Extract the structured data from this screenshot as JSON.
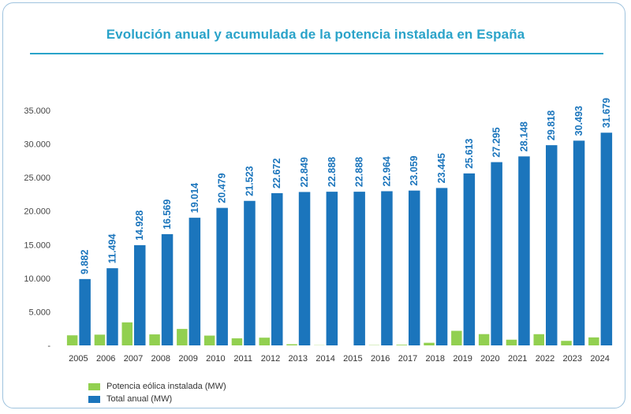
{
  "chart_data": {
    "type": "bar",
    "title": "Evolución anual y acumulada de la potencia instalada en España",
    "xlabel": "",
    "ylabel": "",
    "ylim": [
      0,
      35000
    ],
    "yticks": [
      0,
      5000,
      10000,
      15000,
      20000,
      25000,
      30000,
      35000
    ],
    "ytick_labels": [
      "-",
      "5.000",
      "10.000",
      "15.000",
      "20.000",
      "25.000",
      "30.000",
      "35.000"
    ],
    "categories": [
      "2005",
      "2006",
      "2007",
      "2008",
      "2009",
      "2010",
      "2011",
      "2012",
      "2013",
      "2014",
      "2015",
      "2016",
      "2017",
      "2018",
      "2019",
      "2020",
      "2021",
      "2022",
      "2023",
      "2024"
    ],
    "series": [
      {
        "name": "Potencia eólica instalada (MW)",
        "color": "#92d050",
        "values": [
          1500,
          1600,
          3430,
          1640,
          2450,
          1460,
          1050,
          1150,
          175,
          30,
          0,
          40,
          95,
          390,
          2170,
          1680,
          850,
          1670,
          675,
          1190
        ]
      },
      {
        "name": "Total anual (MW)",
        "color": "#1b75bc",
        "values": [
          9882,
          11494,
          14928,
          16569,
          19014,
          20479,
          21523,
          22672,
          22849,
          22888,
          22888,
          22964,
          23059,
          23445,
          25613,
          27295,
          28148,
          29818,
          30493,
          31679
        ],
        "labels": [
          "9.882",
          "11.494",
          "14.928",
          "16.569",
          "19.014",
          "20.479",
          "21.523",
          "22.672",
          "22.849",
          "22.888",
          "22.888",
          "22.964",
          "23.059",
          "23.445",
          "25.613",
          "27.295",
          "28.148",
          "29.818",
          "30.493",
          "31.679"
        ]
      }
    ],
    "legend_position": "bottom-left"
  }
}
